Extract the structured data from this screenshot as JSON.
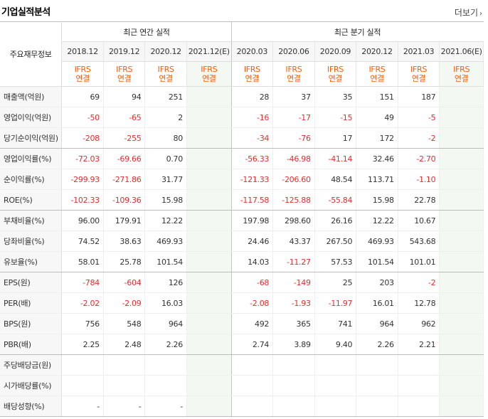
{
  "header": {
    "title": "기업실적분석",
    "more_label": "더보기",
    "more_arrow": "›"
  },
  "table": {
    "row_label_header": "주요재무정보",
    "annual_label": "최근 연간 실적",
    "quarter_label": "최근 분기 실적",
    "annual_periods": [
      "2018.12",
      "2019.12",
      "2020.12",
      "2021.12(E)"
    ],
    "quarter_periods": [
      "2020.03",
      "2020.06",
      "2020.09",
      "2020.12",
      "2021.03",
      "2021.06(E)"
    ],
    "basis_line1": "IFRS",
    "basis_line2": "연결",
    "rows": [
      {
        "label": "매출액(억원)",
        "annual": [
          "69",
          "94",
          "251",
          ""
        ],
        "quarter": [
          "28",
          "37",
          "35",
          "151",
          "187",
          ""
        ]
      },
      {
        "label": "영업이익(억원)",
        "annual": [
          "-50",
          "-65",
          "2",
          ""
        ],
        "quarter": [
          "-16",
          "-17",
          "-15",
          "49",
          "-5",
          ""
        ]
      },
      {
        "label": "당기순이익(억원)",
        "annual": [
          "-208",
          "-255",
          "80",
          ""
        ],
        "quarter": [
          "-34",
          "-76",
          "17",
          "172",
          "-2",
          ""
        ]
      },
      {
        "label": "영업이익률(%)",
        "annual": [
          "-72.03",
          "-69.66",
          "0.70",
          ""
        ],
        "quarter": [
          "-56.33",
          "-46.98",
          "-41.14",
          "32.46",
          "-2.70",
          ""
        ]
      },
      {
        "label": "순이익률(%)",
        "annual": [
          "-299.93",
          "-271.86",
          "31.77",
          ""
        ],
        "quarter": [
          "-121.33",
          "-206.60",
          "48.54",
          "113.71",
          "-1.10",
          ""
        ]
      },
      {
        "label": "ROE(%)",
        "annual": [
          "-102.33",
          "-109.36",
          "15.98",
          ""
        ],
        "quarter": [
          "-117.58",
          "-125.88",
          "-55.84",
          "15.98",
          "22.78",
          ""
        ]
      },
      {
        "label": "부채비율(%)",
        "annual": [
          "96.00",
          "179.91",
          "12.22",
          ""
        ],
        "quarter": [
          "197.98",
          "298.60",
          "26.16",
          "12.22",
          "10.67",
          ""
        ]
      },
      {
        "label": "당좌비율(%)",
        "annual": [
          "74.52",
          "38.63",
          "469.93",
          ""
        ],
        "quarter": [
          "24.46",
          "43.37",
          "267.50",
          "469.93",
          "543.68",
          ""
        ]
      },
      {
        "label": "유보율(%)",
        "annual": [
          "58.01",
          "25.78",
          "101.54",
          ""
        ],
        "quarter": [
          "14.03",
          "-11.27",
          "57.53",
          "101.54",
          "101.01",
          ""
        ]
      },
      {
        "label": "EPS(원)",
        "annual": [
          "-784",
          "-604",
          "126",
          ""
        ],
        "quarter": [
          "-68",
          "-149",
          "25",
          "203",
          "-2",
          ""
        ]
      },
      {
        "label": "PER(배)",
        "annual": [
          "-2.02",
          "-2.09",
          "16.03",
          ""
        ],
        "quarter": [
          "-2.08",
          "-1.93",
          "-11.97",
          "16.01",
          "12.78",
          ""
        ]
      },
      {
        "label": "BPS(원)",
        "annual": [
          "756",
          "548",
          "964",
          ""
        ],
        "quarter": [
          "492",
          "365",
          "741",
          "964",
          "962",
          ""
        ]
      },
      {
        "label": "PBR(배)",
        "annual": [
          "2.25",
          "2.48",
          "2.26",
          ""
        ],
        "quarter": [
          "2.74",
          "3.89",
          "9.40",
          "2.26",
          "2.21",
          ""
        ]
      },
      {
        "label": "주당배당금(원)",
        "annual": [
          "",
          "",
          "",
          ""
        ],
        "quarter": [
          "",
          "",
          "",
          "",
          "",
          ""
        ]
      },
      {
        "label": "시가배당률(%)",
        "annual": [
          "",
          "",
          "",
          ""
        ],
        "quarter": [
          "",
          "",
          "",
          "",
          "",
          ""
        ]
      },
      {
        "label": "배당성향(%)",
        "annual": [
          "-",
          "-",
          "-",
          ""
        ],
        "quarter": [
          "",
          "",
          "",
          "",
          "",
          ""
        ]
      }
    ]
  },
  "colors": {
    "negative": "#e52d2d",
    "basis": "#ff5a00",
    "estimate_bg": "#f4f8f2",
    "label_bg": "#f7f7f7"
  }
}
